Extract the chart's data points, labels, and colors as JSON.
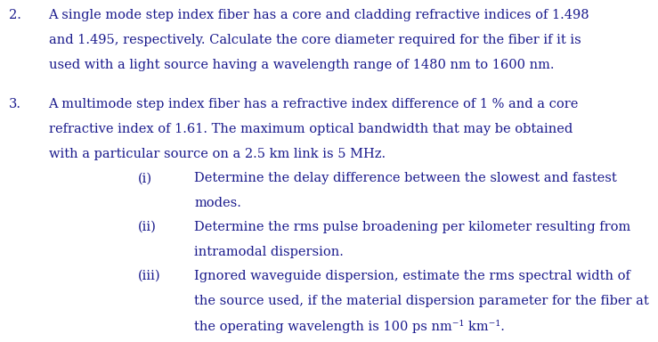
{
  "background_color": "#ffffff",
  "text_color": "#1a1a8c",
  "font_size": 10.5,
  "q2_number": "2.",
  "q2_text_line1": "A single mode step index fiber has a core and cladding refractive indices of 1.498",
  "q2_text_line2": "and 1.495, respectively. Calculate the core diameter required for the fiber if it is",
  "q2_text_line3": "used with a light source having a wavelength range of 1480 nm to 1600 nm.",
  "q3_number": "3.",
  "q3_text_line1": "A multimode step index fiber has a refractive index difference of 1 % and a core",
  "q3_text_line2": "refractive index of 1.61. The maximum optical bandwidth that may be obtained",
  "q3_text_line3": "with a particular source on a 2.5 km link is 5 MHz.",
  "sub_i_label": "(i)",
  "sub_i_line1": "Determine the delay difference between the slowest and fastest",
  "sub_i_line2": "modes.",
  "sub_ii_label": "(ii)",
  "sub_ii_line1": "Determine the rms pulse broadening per kilometer resulting from",
  "sub_ii_line2": "intramodal dispersion.",
  "sub_iii_label": "(iii)",
  "sub_iii_line1": "Ignored waveguide dispersion, estimate the rms spectral width of",
  "sub_iii_line2": "the source used, if the material dispersion parameter for the fiber at",
  "sub_iii_line3": "the operating wavelength is 100 ps nm⁻¹ km⁻¹."
}
